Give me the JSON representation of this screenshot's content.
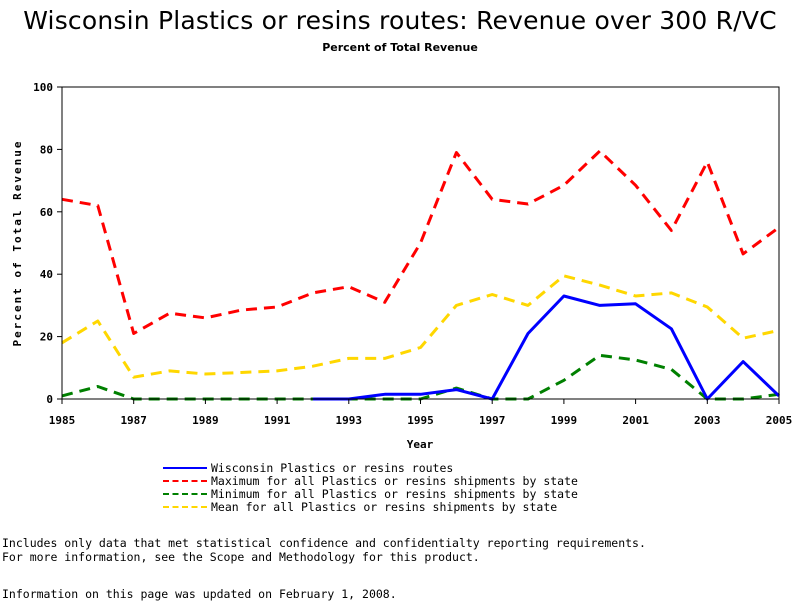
{
  "chart_data": {
    "type": "line",
    "title": "Wisconsin Plastics or resins routes: Revenue over 300 R/VC",
    "subtitle": "Percent of Total Revenue",
    "xlabel": "Year",
    "ylabel": "Percent of Total Revenue",
    "x": [
      1985,
      1986,
      1987,
      1988,
      1989,
      1990,
      1991,
      1992,
      1993,
      1994,
      1995,
      1996,
      1997,
      1998,
      1999,
      2000,
      2001,
      2002,
      2003,
      2004,
      2005
    ],
    "xlim": [
      1985,
      2005
    ],
    "ylim": [
      0,
      100
    ],
    "xticks": [
      "1985",
      "1987",
      "1989",
      "1991",
      "1993",
      "1995",
      "1997",
      "1999",
      "2001",
      "2003",
      "2005"
    ],
    "yticks": [
      "0",
      "20",
      "40",
      "60",
      "80",
      "100"
    ],
    "grid": false,
    "legend_position": "bottom",
    "series": [
      {
        "name": "Wisconsin Plastics or resins routes",
        "color": "#0000ff",
        "dash": "solid",
        "values": [
          null,
          null,
          null,
          null,
          null,
          null,
          null,
          0,
          0,
          1.5,
          1.5,
          3,
          0,
          21,
          33,
          30,
          30.5,
          22.5,
          0,
          12,
          1
        ]
      },
      {
        "name": "Maximum for all Plastics or resins shipments by state",
        "color": "#ff0000",
        "dash": "dashed",
        "values": [
          64,
          62,
          21,
          27.5,
          26,
          28.5,
          29.5,
          34,
          36,
          31,
          50,
          79,
          64,
          62.5,
          68.5,
          79.5,
          68.5,
          54,
          76,
          46.5,
          55
        ]
      },
      {
        "name": "Minimum for all Plastics or resins shipments by state",
        "color": "#008000",
        "dash": "dashed",
        "values": [
          1,
          4,
          0,
          0,
          0,
          0,
          0,
          0,
          0,
          0,
          0,
          3.5,
          0,
          0,
          6,
          14,
          12.5,
          9.5,
          0,
          0,
          1.5
        ]
      },
      {
        "name": "Mean for all Plastics or resins shipments by state",
        "color": "#ffd700",
        "dash": "dashed",
        "values": [
          18,
          25,
          7,
          9,
          8,
          8.5,
          9,
          10.5,
          13,
          13,
          16.5,
          30,
          33.5,
          30,
          39.5,
          36.5,
          33,
          34,
          29.5,
          19.5,
          22
        ]
      }
    ]
  },
  "footer": {
    "note_line1": "Includes only data that met statistical confidence and confidentialty reporting requirements.",
    "note_line2": "For more information, see the Scope and Methodology for this product.",
    "updated": "Information on this page was updated on February 1, 2008."
  }
}
